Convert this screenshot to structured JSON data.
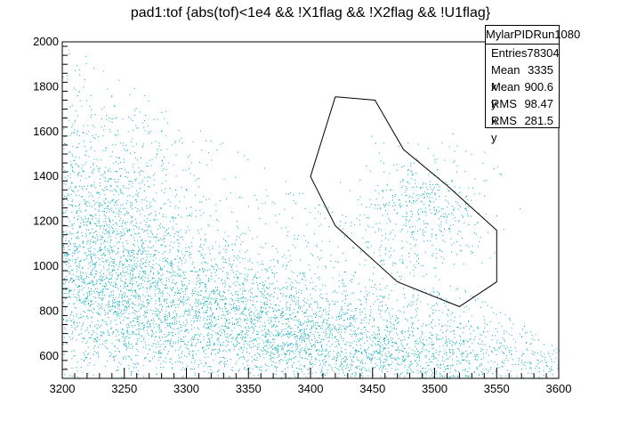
{
  "title": "pad1:tof {abs(tof)<1e4 && !X1flag && !X2flag && !U1flag}",
  "stats": {
    "name": "MylarPIDRun1080",
    "rows": [
      {
        "label": "Entries",
        "value": "78304"
      },
      {
        "label": "Mean x",
        "value": "3335"
      },
      {
        "label": "Mean y",
        "value": "900.6"
      },
      {
        "label": "RMS x",
        "value": "98.47"
      },
      {
        "label": "RMS y",
        "value": "281.5"
      }
    ]
  },
  "colors": {
    "points": "#00aabb",
    "axis": "#000000",
    "cut": "#000000"
  },
  "chart_data": {
    "type": "scatter",
    "title": "pad1:tof {abs(tof)<1e4 && !X1flag && !X2flag && !U1flag}",
    "xlabel": "",
    "ylabel": "",
    "xlim": [
      3200,
      3600
    ],
    "ylim": [
      500,
      2000
    ],
    "x_ticks": [
      "3200",
      "3250",
      "3300",
      "3350",
      "3400",
      "3450",
      "3500",
      "3550",
      "3600"
    ],
    "y_ticks": [
      "600",
      "800",
      "1000",
      "1200",
      "1400",
      "1600",
      "1800",
      "2000"
    ],
    "series": [
      {
        "name": "MylarPIDRun1080",
        "description": "dense band of points decreasing from upper-left to lower-right, plus an isolated island near x 3450-3530, y 1100-1500",
        "density_clusters": [
          {
            "x_center": 3230,
            "y_center": 1100,
            "x_spread": 35,
            "y_spread": 300,
            "weight": 0.3
          },
          {
            "x_center": 3290,
            "y_center": 880,
            "x_spread": 60,
            "y_spread": 150,
            "weight": 0.25
          },
          {
            "x_center": 3380,
            "y_center": 720,
            "x_spread": 70,
            "y_spread": 110,
            "weight": 0.25
          },
          {
            "x_center": 3470,
            "y_center": 590,
            "x_spread": 60,
            "y_spread": 70,
            "weight": 0.12
          },
          {
            "x_center": 3490,
            "y_center": 1250,
            "x_spread": 25,
            "y_spread": 120,
            "weight": 0.08
          }
        ]
      }
    ],
    "cut_polygon": [
      {
        "x": 3420,
        "y": 1755
      },
      {
        "x": 3452,
        "y": 1740
      },
      {
        "x": 3475,
        "y": 1520
      },
      {
        "x": 3510,
        "y": 1360
      },
      {
        "x": 3550,
        "y": 1160
      },
      {
        "x": 3550,
        "y": 930
      },
      {
        "x": 3520,
        "y": 820
      },
      {
        "x": 3470,
        "y": 930
      },
      {
        "x": 3420,
        "y": 1180
      },
      {
        "x": 3400,
        "y": 1400
      },
      {
        "x": 3420,
        "y": 1755
      }
    ]
  }
}
